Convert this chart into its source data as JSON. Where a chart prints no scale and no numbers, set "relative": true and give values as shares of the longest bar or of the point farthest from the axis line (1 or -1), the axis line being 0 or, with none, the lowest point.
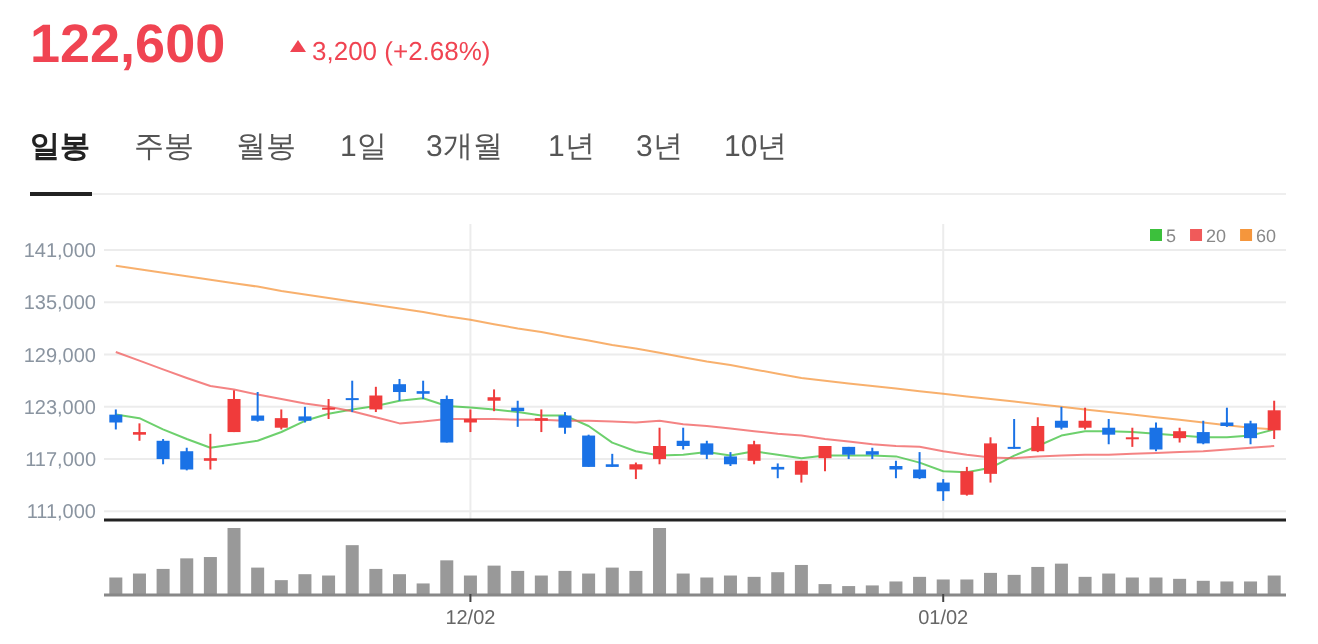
{
  "chart_data": [
    {
      "type": "other",
      "title": "122,600",
      "subtitle": "3,200 (+2.68%)",
      "color": "#f04452",
      "annotations": [
        "일봉",
        "주봉",
        "월봉",
        "1일",
        "3개월",
        "1년",
        "3년",
        "10년"
      ]
    },
    {
      "type": "candlestick",
      "categories": [
        null,
        null,
        null,
        null,
        null,
        null,
        null,
        null,
        null,
        null,
        null,
        null,
        null,
        null,
        null,
        null,
        null,
        null,
        null,
        null,
        null,
        null,
        null,
        null,
        null,
        null,
        null,
        null,
        null,
        null,
        null,
        null,
        null,
        null,
        null,
        null,
        null,
        null,
        null,
        null,
        null,
        null,
        null,
        null,
        null,
        null,
        null,
        null,
        null,
        null
      ],
      "ohlc": [
        [
          122100,
          122700,
          120400,
          121200
        ],
        [
          119800,
          121100,
          119100,
          120100
        ],
        [
          119100,
          119300,
          116400,
          117000
        ],
        [
          117900,
          118300,
          115700,
          115800
        ],
        [
          116800,
          119900,
          115800,
          117100
        ],
        [
          120100,
          124900,
          120100,
          123900
        ],
        [
          122000,
          124700,
          121300,
          121400
        ],
        [
          120600,
          122700,
          120400,
          121700
        ],
        [
          121900,
          123000,
          121200,
          121400
        ],
        [
          122700,
          123900,
          121600,
          122900
        ],
        [
          124000,
          126000,
          122400,
          123800
        ],
        [
          122700,
          125300,
          122400,
          124300
        ],
        [
          125600,
          126200,
          123700,
          124700
        ],
        [
          124800,
          126000,
          123900,
          124500
        ],
        [
          123900,
          124300,
          118900,
          118900
        ],
        [
          121200,
          122700,
          120100,
          121600
        ],
        [
          123700,
          125000,
          122500,
          124100
        ],
        [
          122900,
          123700,
          120700,
          122500
        ],
        [
          121400,
          122700,
          120100,
          121700
        ],
        [
          122000,
          122400,
          119900,
          120600
        ],
        [
          119700,
          119800,
          116100,
          116100
        ],
        [
          116400,
          117600,
          116100,
          116100
        ],
        [
          115800,
          116600,
          114700,
          116400
        ],
        [
          117000,
          120600,
          116400,
          118500
        ],
        [
          119100,
          120600,
          118100,
          118500
        ],
        [
          118800,
          119100,
          117000,
          117500
        ],
        [
          117300,
          117800,
          116200,
          116400
        ],
        [
          116800,
          119100,
          116400,
          118700
        ],
        [
          116100,
          116500,
          114800,
          115800
        ],
        [
          115200,
          116800,
          114300,
          116800
        ],
        [
          117100,
          118500,
          115600,
          118500
        ],
        [
          118400,
          118400,
          117000,
          117500
        ],
        [
          117900,
          118300,
          117000,
          117500
        ],
        [
          116200,
          116800,
          114800,
          115800
        ],
        [
          115800,
          117800,
          114700,
          114800
        ],
        [
          114300,
          114700,
          112200,
          113300
        ],
        [
          112900,
          116100,
          112800,
          115600
        ],
        [
          115300,
          119500,
          114300,
          118800
        ],
        [
          118400,
          121600,
          118200,
          118200
        ],
        [
          117900,
          121800,
          117800,
          120800
        ],
        [
          121400,
          123000,
          120400,
          120600
        ],
        [
          120600,
          122900,
          120400,
          121400
        ],
        [
          120600,
          121600,
          118700,
          119800
        ],
        [
          119300,
          120600,
          118400,
          119500
        ],
        [
          120600,
          121200,
          117900,
          118100
        ],
        [
          119400,
          120600,
          118900,
          120200
        ],
        [
          120100,
          121400,
          118700,
          118800
        ],
        [
          121200,
          122900,
          120700,
          120800
        ],
        [
          121100,
          121400,
          118700,
          119400
        ],
        [
          120300,
          123700,
          119300,
          122600
        ]
      ],
      "colors": [
        "#1a72e6",
        "#f03b3b",
        "#1a72e6",
        "#1a72e6",
        "#f03b3b",
        "#f03b3b",
        "#1a72e6",
        "#f03b3b",
        "#1a72e6",
        "#f03b3b",
        "#1a72e6",
        "#f03b3b",
        "#1a72e6",
        "#1a72e6",
        "#1a72e6",
        "#f03b3b",
        "#f03b3b",
        "#1a72e6",
        "#f03b3b",
        "#1a72e6",
        "#1a72e6",
        "#1a72e6",
        "#f03b3b",
        "#f03b3b",
        "#1a72e6",
        "#1a72e6",
        "#1a72e6",
        "#f03b3b",
        "#1a72e6",
        "#f03b3b",
        "#f03b3b",
        "#1a72e6",
        "#1a72e6",
        "#1a72e6",
        "#1a72e6",
        "#1a72e6",
        "#f03b3b",
        "#f03b3b",
        "#1a72e6",
        "#f03b3b",
        "#1a72e6",
        "#f03b3b",
        "#1a72e6",
        "#f03b3b",
        "#1a72e6",
        "#f03b3b",
        "#1a72e6",
        "#1a72e6",
        "#1a72e6",
        "#f03b3b"
      ],
      "series": [
        {
          "name": "5",
          "type": "line",
          "color": "#3cc03c",
          "values": [
            122100,
            121700,
            120400,
            119300,
            118300,
            118700,
            119100,
            120100,
            121400,
            122200,
            122700,
            123100,
            123700,
            124000,
            123100,
            122900,
            122700,
            122400,
            122000,
            122000,
            120800,
            118900,
            117900,
            117400,
            117500,
            117800,
            117400,
            117900,
            117500,
            117100,
            117400,
            117400,
            117400,
            117300,
            116600,
            115600,
            115500,
            116000,
            117400,
            118500,
            119700,
            120200,
            120200,
            120100,
            119900,
            119700,
            119500,
            119500,
            119700,
            120400
          ]
        },
        {
          "name": "20",
          "type": "line",
          "color": "#f05a5a",
          "values": [
            129300,
            128300,
            127300,
            126300,
            125400,
            125000,
            124400,
            123900,
            123400,
            123000,
            122500,
            121800,
            121100,
            121300,
            121600,
            121600,
            121600,
            121500,
            121500,
            121400,
            121400,
            121300,
            121200,
            121400,
            121000,
            120800,
            120500,
            120200,
            119900,
            119700,
            119300,
            119000,
            118700,
            118500,
            118400,
            117900,
            117500,
            117200,
            117100,
            117300,
            117400,
            117500,
            117500,
            117600,
            117700,
            117800,
            117900,
            118100,
            118300,
            118500
          ]
        },
        {
          "name": "60",
          "type": "line",
          "color": "#f5963c",
          "values": [
            139200,
            138800,
            138400,
            138000,
            137600,
            137200,
            136800,
            136300,
            135900,
            135500,
            135100,
            134700,
            134300,
            133900,
            133400,
            133000,
            132500,
            132000,
            131600,
            131100,
            130600,
            130100,
            129700,
            129200,
            128700,
            128200,
            127800,
            127300,
            126800,
            126300,
            126000,
            125700,
            125400,
            125100,
            124800,
            124500,
            124200,
            123900,
            123600,
            123300,
            123000,
            122700,
            122400,
            122100,
            121800,
            121500,
            121200,
            120900,
            120600,
            120400
          ]
        }
      ],
      "ylim": [
        110000,
        144000
      ],
      "yticks": [
        {
          "value": 111000,
          "label": "111,000"
        },
        {
          "value": 117000,
          "label": "117,000"
        },
        {
          "value": 123000,
          "label": "123,000"
        },
        {
          "value": 129000,
          "label": "129,000"
        },
        {
          "value": 135000,
          "label": "135,000"
        },
        {
          "value": 141000,
          "label": "141,000"
        }
      ],
      "grid": true,
      "legend": "top right",
      "tick_labels": "y"
    },
    {
      "type": "bar",
      "relative": true,
      "color": "#999999",
      "tick_labels": "x",
      "categories": [
        null,
        null,
        null,
        null,
        null,
        null,
        null,
        null,
        null,
        null,
        null,
        null,
        null,
        null,
        null,
        "12/02",
        null,
        null,
        null,
        null,
        null,
        null,
        null,
        null,
        null,
        null,
        null,
        null,
        null,
        null,
        null,
        null,
        null,
        null,
        null,
        "01/02",
        null,
        null,
        null,
        null,
        null,
        null,
        null,
        null,
        null,
        null,
        null,
        null,
        null,
        null
      ],
      "values": [
        0.25,
        0.31,
        0.38,
        0.54,
        0.56,
        1,
        0.4,
        0.21,
        0.3,
        0.28,
        0.74,
        0.38,
        0.3,
        0.16,
        0.51,
        0.28,
        0.43,
        0.35,
        0.28,
        0.35,
        0.31,
        0.4,
        0.35,
        1,
        0.31,
        0.25,
        0.28,
        0.26,
        0.33,
        0.44,
        0.15,
        0.12,
        0.13,
        0.19,
        0.26,
        0.22,
        0.22,
        0.32,
        0.29,
        0.41,
        0.46,
        0.26,
        0.31,
        0.25,
        0.25,
        0.23,
        0.2,
        0.19,
        0.19,
        0.28
      ]
    }
  ]
}
